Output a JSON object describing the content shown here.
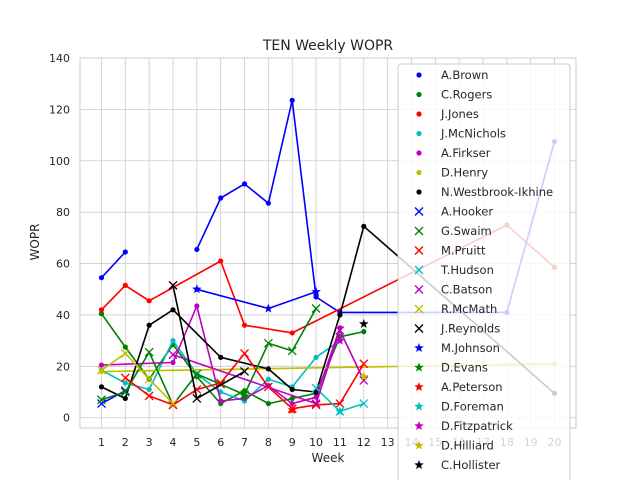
{
  "chart_data": {
    "type": "line",
    "title": "TEN Weekly WOPR",
    "xlabel": "Week",
    "ylabel": "WOPR",
    "x_ticks": [
      1,
      2,
      3,
      4,
      5,
      6,
      7,
      8,
      9,
      10,
      11,
      12,
      13,
      14,
      15,
      16,
      17,
      18,
      19,
      20
    ],
    "y_ticks": [
      0,
      20,
      40,
      60,
      80,
      100,
      120,
      140
    ],
    "xlim": [
      0.1,
      20.9
    ],
    "ylim": [
      -4,
      140
    ],
    "grid": true,
    "legend_position": "upper-right",
    "series": [
      {
        "name": "A.Brown",
        "color": "#0000ff",
        "marker": "dot",
        "points": [
          [
            1,
            54.5
          ],
          [
            2,
            64.5
          ],
          [
            3,
            null
          ],
          [
            5,
            65.5
          ],
          [
            6,
            85.5
          ],
          [
            7,
            91
          ],
          [
            8,
            83.5
          ],
          [
            9,
            123.5
          ],
          [
            10,
            47
          ],
          [
            11,
            41
          ],
          [
            18,
            41
          ],
          [
            20,
            107.5
          ]
        ]
      },
      {
        "name": "C.Rogers",
        "color": "#008000",
        "marker": "dot",
        "points": [
          [
            1,
            40.5
          ],
          [
            2,
            27.5
          ],
          [
            3,
            15
          ],
          [
            4,
            28.5
          ],
          [
            5,
            16
          ],
          [
            6,
            5.5
          ],
          [
            7,
            10.5
          ],
          [
            8,
            5.5
          ],
          [
            9,
            7.5
          ],
          [
            10,
            9.5
          ],
          [
            11,
            31.5
          ],
          [
            12,
            33.5
          ]
        ]
      },
      {
        "name": "J.Jones",
        "color": "#ff0000",
        "marker": "dot",
        "points": [
          [
            1,
            42
          ],
          [
            2,
            51.5
          ],
          [
            3,
            45.5
          ],
          [
            6,
            61
          ],
          [
            7,
            36
          ],
          [
            9,
            33
          ],
          [
            18,
            75
          ],
          [
            20,
            58.5
          ]
        ]
      },
      {
        "name": "J.McNichols",
        "color": "#00bfbf",
        "marker": "dot",
        "points": [
          [
            1,
            18.5
          ],
          [
            2,
            13.5
          ],
          [
            3,
            11
          ],
          [
            4,
            30
          ],
          [
            5,
            17
          ],
          [
            6,
            10
          ],
          [
            7,
            6.5
          ],
          [
            8,
            15
          ],
          [
            9,
            12
          ],
          [
            10,
            23.5
          ],
          [
            11,
            30
          ]
        ]
      },
      {
        "name": "A.Firkser",
        "color": "#bf00bf",
        "marker": "dot",
        "points": [
          [
            1,
            20.5
          ],
          [
            4,
            21.5
          ],
          [
            5,
            43.5
          ],
          [
            6,
            6.5
          ],
          [
            7,
            7.5
          ],
          [
            8,
            12.5
          ],
          [
            9,
            5.5
          ],
          [
            10,
            8
          ],
          [
            11,
            35
          ]
        ]
      },
      {
        "name": "D.Henry",
        "color": "#bfbf00",
        "marker": "dot",
        "points": [
          [
            1,
            18
          ],
          [
            20,
            21
          ]
        ]
      },
      {
        "name": "N.Westbrook-Ikhine",
        "color": "#000000",
        "marker": "dot",
        "points": [
          [
            1,
            12
          ],
          [
            2,
            7.5
          ],
          [
            3,
            36
          ],
          [
            4,
            42
          ],
          [
            6,
            23.5
          ],
          [
            8,
            19
          ],
          [
            9,
            11
          ],
          [
            10,
            10
          ],
          [
            11,
            40
          ],
          [
            12,
            74.5
          ],
          [
            20,
            9.5
          ]
        ]
      },
      {
        "name": "A.Hooker",
        "color": "#0000ff",
        "marker": "x",
        "points": [
          [
            1,
            5.5
          ],
          [
            2,
            10.5
          ]
        ]
      },
      {
        "name": "G.Swaim",
        "color": "#008000",
        "marker": "x",
        "points": [
          [
            1,
            7
          ],
          [
            2,
            10
          ],
          [
            3,
            25.5
          ],
          [
            4,
            5
          ],
          [
            5,
            17
          ],
          [
            6,
            13
          ],
          [
            7,
            9
          ],
          [
            8,
            29
          ],
          [
            9,
            26
          ],
          [
            10,
            42.5
          ]
        ]
      },
      {
        "name": "M.Pruitt",
        "color": "#ff0000",
        "marker": "x",
        "points": [
          [
            2,
            15.5
          ],
          [
            3,
            8.5
          ],
          [
            4,
            5
          ],
          [
            5,
            11
          ],
          [
            6,
            13.5
          ],
          [
            7,
            25
          ],
          [
            8,
            12
          ],
          [
            9,
            3.5
          ],
          [
            10,
            5
          ],
          [
            11,
            5.5
          ],
          [
            12,
            21
          ]
        ]
      },
      {
        "name": "T.Hudson",
        "color": "#00bfbf",
        "marker": "x",
        "points": [
          [
            10,
            11.5
          ],
          [
            11,
            2.5
          ],
          [
            12,
            5.5
          ]
        ]
      },
      {
        "name": "C.Batson",
        "color": "#bf00bf",
        "marker": "x",
        "points": [
          [
            4,
            24.5
          ],
          [
            10,
            5.5
          ],
          [
            11,
            34
          ],
          [
            12,
            14.5
          ]
        ]
      },
      {
        "name": "R.McMath",
        "color": "#bfbf00",
        "marker": "x",
        "points": [
          [
            1,
            18.5
          ],
          [
            2,
            25
          ],
          [
            3,
            15
          ],
          [
            4,
            5.5
          ]
        ]
      },
      {
        "name": "J.Reynolds",
        "color": "#000000",
        "marker": "x",
        "points": [
          [
            4,
            51.5
          ],
          [
            5,
            7.5
          ],
          [
            7,
            18
          ]
        ]
      },
      {
        "name": "M.Johnson",
        "color": "#0000ff",
        "marker": "star",
        "points": [
          [
            5,
            50
          ],
          [
            8,
            42.5
          ],
          [
            10,
            49
          ]
        ]
      },
      {
        "name": "D.Evans",
        "color": "#008000",
        "marker": "star",
        "points": [
          [
            7,
            8.5
          ]
        ]
      },
      {
        "name": "A.Peterson",
        "color": "#ff0000",
        "marker": "star",
        "points": [
          [
            9,
            3
          ]
        ]
      },
      {
        "name": "D.Foreman",
        "color": "#00bfbf",
        "marker": "star",
        "points": [
          [
            11,
            2.5
          ]
        ]
      },
      {
        "name": "D.Fitzpatrick",
        "color": "#bf00bf",
        "marker": "star",
        "points": [
          [
            11,
            30
          ]
        ]
      },
      {
        "name": "D.Hilliard",
        "color": "#bfbf00",
        "marker": "star",
        "points": [
          [
            12,
            16
          ]
        ]
      },
      {
        "name": "C.Hollister",
        "color": "#000000",
        "marker": "star",
        "points": [
          [
            12,
            36.5
          ]
        ]
      }
    ]
  }
}
